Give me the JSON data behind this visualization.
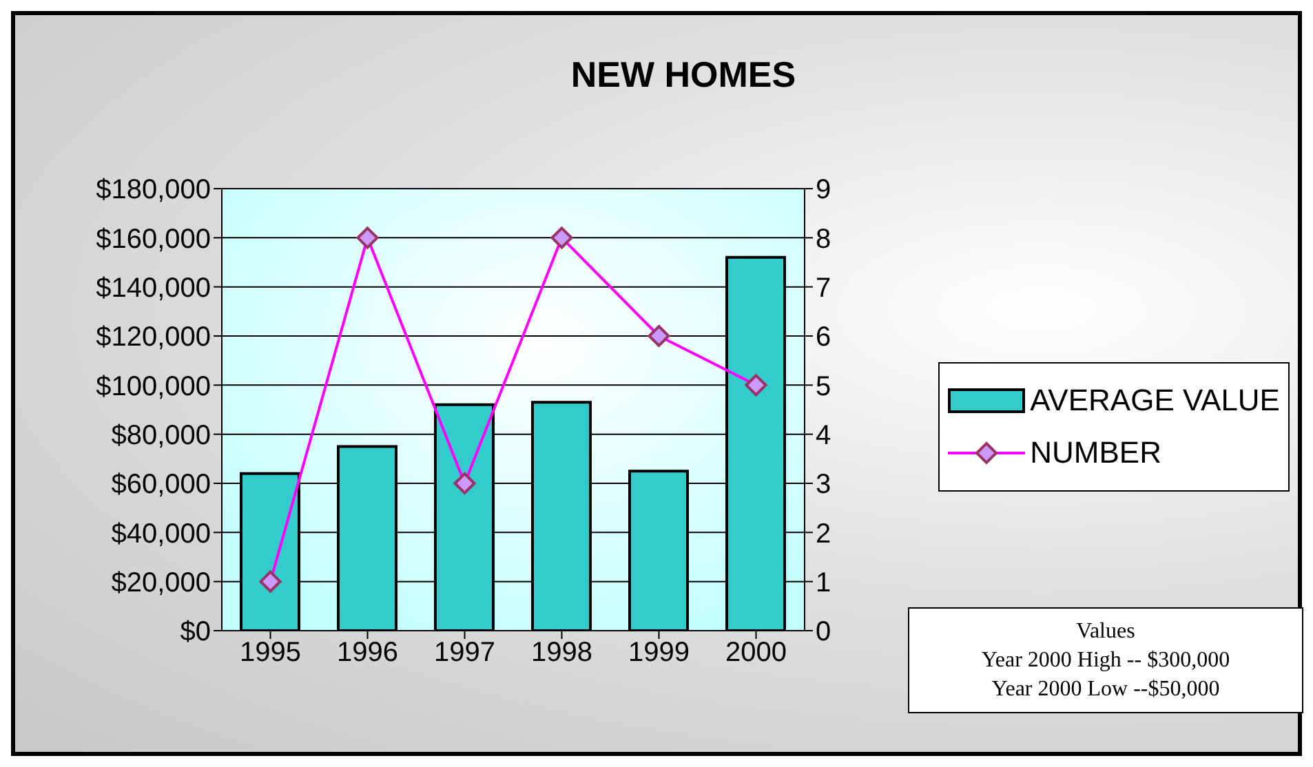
{
  "chart_data": {
    "type": "bar",
    "title": "NEW HOMES",
    "categories": [
      "1995",
      "1996",
      "1997",
      "1998",
      "1999",
      "2000"
    ],
    "series": [
      {
        "name": "AVERAGE VALUE",
        "color": "#33cccc",
        "values": [
          64000,
          75000,
          92000,
          93000,
          65000,
          152000
        ]
      },
      {
        "name": "NUMBER",
        "type": "line",
        "axis": "y2",
        "color": "#ff00ff",
        "marker": "diamond",
        "values": [
          1,
          8,
          3,
          8,
          6,
          5
        ]
      }
    ],
    "ylim": [
      0,
      180000
    ],
    "yticks": [
      {
        "value": 0,
        "label": "$0"
      },
      {
        "value": 20000,
        "label": "$20,000"
      },
      {
        "value": 40000,
        "label": "$40,000"
      },
      {
        "value": 60000,
        "label": "$60,000"
      },
      {
        "value": 80000,
        "label": "$80,000"
      },
      {
        "value": 100000,
        "label": "$100,000"
      },
      {
        "value": 120000,
        "label": "$120,000"
      },
      {
        "value": 140000,
        "label": "$140,000"
      },
      {
        "value": 160000,
        "label": "$160,000"
      },
      {
        "value": 180000,
        "label": "$180,000"
      }
    ],
    "y2lim": [
      0,
      9
    ],
    "y2ticks": [
      0,
      1,
      2,
      3,
      4,
      5,
      6,
      7,
      8,
      9
    ],
    "grid": "y",
    "legend": "right",
    "annotations": [
      "Values",
      "Year 2000 High -- $300,000",
      "Year 2000 Low --$50,000"
    ]
  }
}
